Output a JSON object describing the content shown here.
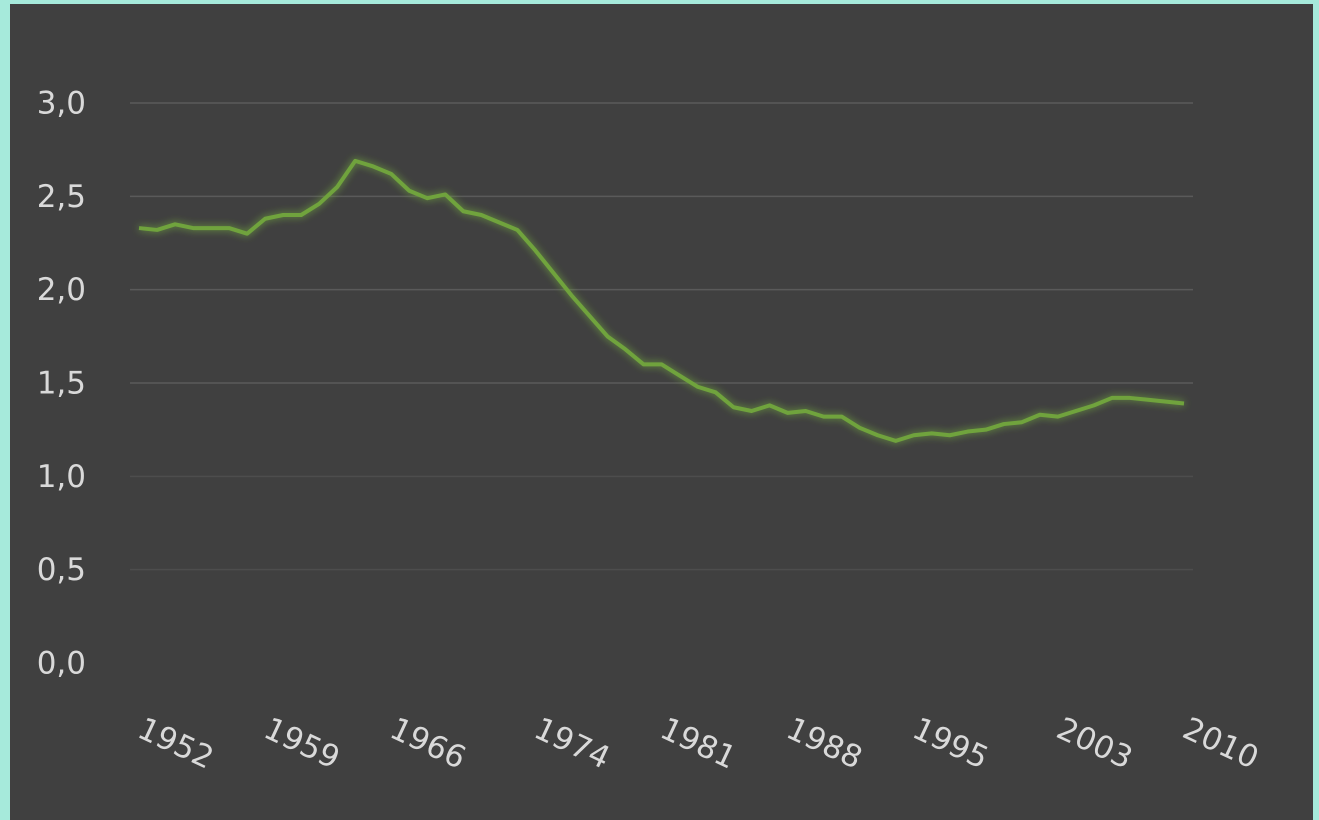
{
  "chart_data": {
    "type": "line",
    "categories": [
      "1952",
      null,
      null,
      null,
      null,
      null,
      null,
      "1959",
      null,
      null,
      null,
      null,
      null,
      null,
      "1966",
      null,
      null,
      null,
      null,
      null,
      null,
      null,
      "1974",
      null,
      null,
      null,
      null,
      null,
      null,
      "1981",
      null,
      null,
      null,
      null,
      null,
      null,
      "1988",
      null,
      null,
      null,
      null,
      null,
      null,
      "1995",
      null,
      null,
      null,
      null,
      null,
      null,
      null,
      "2003",
      null,
      null,
      null,
      null,
      null,
      null,
      "2010"
    ],
    "series": [
      {
        "color": "#6fa33d",
        "values": [
          2.33,
          2.32,
          2.35,
          2.33,
          2.33,
          2.33,
          2.3,
          2.38,
          2.4,
          2.4,
          2.46,
          2.55,
          2.69,
          2.66,
          2.62,
          2.53,
          2.49,
          2.51,
          2.42,
          2.4,
          2.36,
          2.32,
          2.21,
          2.09,
          1.97,
          1.86,
          1.75,
          1.68,
          1.6,
          1.6,
          1.54,
          1.48,
          1.45,
          1.37,
          1.35,
          1.38,
          1.34,
          1.35,
          1.32,
          1.32,
          1.26,
          1.22,
          1.19,
          1.22,
          1.23,
          1.22,
          1.24,
          1.25,
          1.28,
          1.29,
          1.33,
          1.32,
          1.35,
          1.38,
          1.42,
          1.42,
          1.41,
          1.4,
          1.39
        ]
      }
    ],
    "ylim": [
      0,
      3
    ],
    "yticks": [
      {
        "value": 0,
        "label": "0,0"
      },
      {
        "value": 0.5,
        "label": "0,5"
      },
      {
        "value": 1,
        "label": "1,0"
      },
      {
        "value": 1.5,
        "label": "1,5"
      },
      {
        "value": 2,
        "label": "2,0"
      },
      {
        "value": 2.5,
        "label": "2,5"
      },
      {
        "value": 3,
        "label": "3,0"
      }
    ],
    "grid": true
  }
}
